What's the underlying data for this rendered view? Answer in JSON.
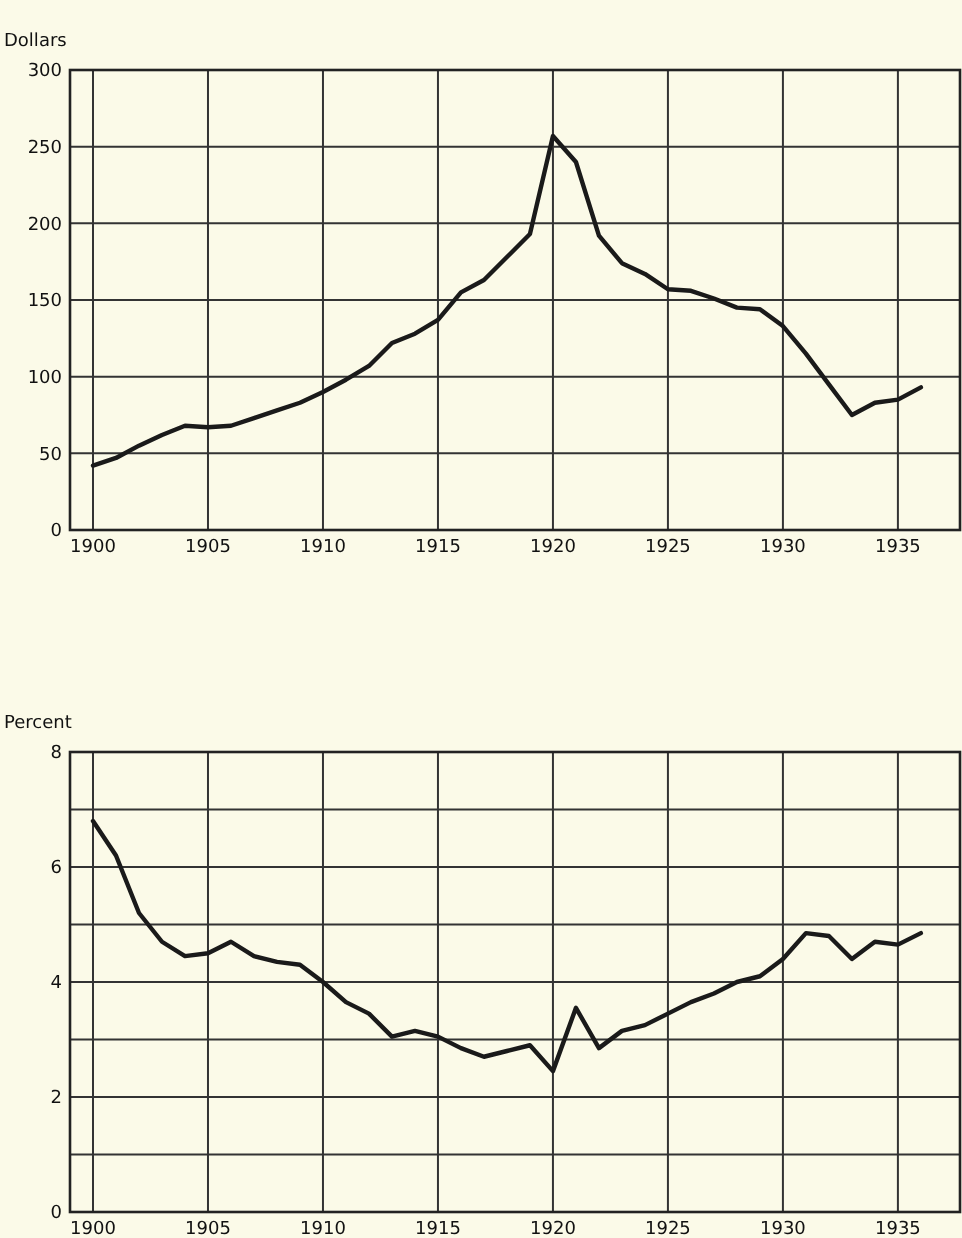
{
  "chart_data": [
    {
      "type": "line",
      "ylabel": "Dollars",
      "x": [
        1900,
        1901,
        1902,
        1903,
        1904,
        1905,
        1906,
        1907,
        1908,
        1909,
        1910,
        1911,
        1912,
        1913,
        1914,
        1915,
        1916,
        1917,
        1918,
        1919,
        1920,
        1921,
        1922,
        1923,
        1924,
        1925,
        1926,
        1927,
        1928,
        1929,
        1930,
        1931,
        1932,
        1933,
        1934,
        1935,
        1936
      ],
      "series": [
        {
          "color": "#1a1a1a",
          "values": [
            42,
            47,
            55,
            62,
            68,
            67,
            68,
            73,
            78,
            83,
            90,
            98,
            107,
            122,
            128,
            137,
            155,
            163,
            178,
            193,
            257,
            240,
            192,
            174,
            167,
            157,
            156,
            151,
            145,
            144,
            133,
            115,
            95,
            75,
            83,
            85,
            93
          ]
        }
      ],
      "xlim": [
        1899,
        1937.7
      ],
      "xticks": [
        1900,
        1905,
        1910,
        1915,
        1920,
        1925,
        1930,
        1935
      ],
      "ylim": [
        0,
        300
      ],
      "yticks": [
        0,
        50,
        100,
        150,
        200,
        250,
        300
      ],
      "grid": true,
      "marker": "none",
      "line_style": "solid"
    },
    {
      "type": "line",
      "ylabel": "Percent",
      "x": [
        1900,
        1901,
        1902,
        1903,
        1904,
        1905,
        1906,
        1907,
        1908,
        1909,
        1910,
        1911,
        1912,
        1913,
        1914,
        1915,
        1916,
        1917,
        1918,
        1919,
        1920,
        1921,
        1922,
        1923,
        1924,
        1925,
        1926,
        1927,
        1928,
        1929,
        1930,
        1931,
        1932,
        1933,
        1934,
        1935,
        1936
      ],
      "series": [
        {
          "color": "#1a1a1a",
          "values": [
            6.8,
            6.2,
            5.2,
            4.7,
            4.45,
            4.5,
            4.7,
            4.45,
            4.35,
            4.3,
            4.0,
            3.65,
            3.45,
            3.05,
            3.15,
            3.05,
            2.85,
            2.7,
            2.8,
            2.9,
            2.45,
            3.55,
            2.85,
            3.15,
            3.25,
            3.45,
            3.65,
            3.8,
            4.0,
            4.1,
            4.4,
            4.85,
            4.8,
            4.4,
            4.7,
            4.65,
            4.85
          ]
        }
      ],
      "xlim": [
        1899,
        1937.7
      ],
      "xticks": [
        1900,
        1905,
        1910,
        1915,
        1920,
        1925,
        1930,
        1935
      ],
      "ylim": [
        0,
        8
      ],
      "yticks": [
        0,
        {
          "value": 1,
          "label": null
        },
        2,
        {
          "value": 3,
          "label": null
        },
        4,
        {
          "value": 5,
          "label": null
        },
        6,
        {
          "value": 7,
          "label": null
        },
        8
      ],
      "grid": true,
      "marker": "none",
      "line_style": "solid"
    }
  ]
}
